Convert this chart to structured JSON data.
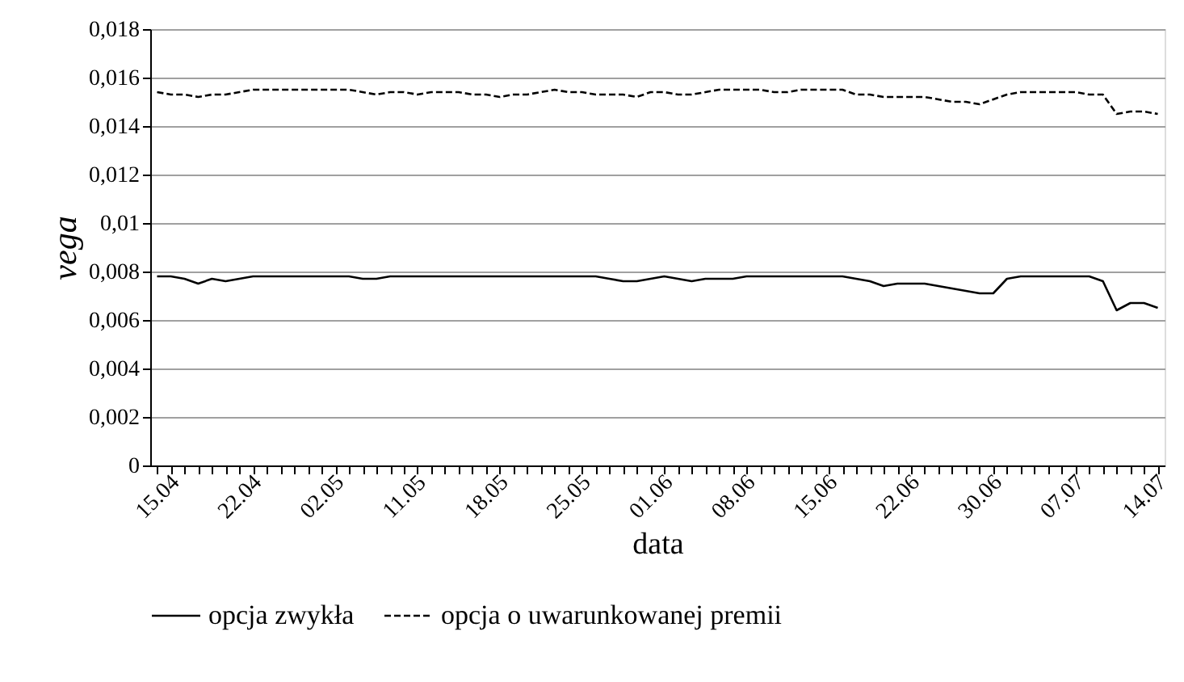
{
  "chart_data": {
    "type": "line",
    "xlabel": "data",
    "ylabel": "vega",
    "categories": [
      "15.04",
      null,
      null,
      null,
      null,
      null,
      "22.04",
      null,
      null,
      null,
      null,
      null,
      "02.05",
      null,
      null,
      null,
      null,
      null,
      "11.05",
      null,
      null,
      null,
      null,
      null,
      "18.05",
      null,
      null,
      null,
      null,
      null,
      "25.05",
      null,
      null,
      null,
      null,
      null,
      "01.06",
      null,
      null,
      null,
      null,
      null,
      "08.06",
      null,
      null,
      null,
      null,
      null,
      "15.06",
      null,
      null,
      null,
      null,
      null,
      "22.06",
      null,
      null,
      null,
      null,
      null,
      "30.06",
      null,
      null,
      null,
      null,
      null,
      "07.07",
      null,
      null,
      null,
      null,
      null,
      "14.07",
      null
    ],
    "series": [
      {
        "name": "opcja zwykła",
        "color": "#000000",
        "line_style": "solid",
        "values": [
          0.0078,
          0.0078,
          0.0077,
          0.0075,
          0.0077,
          0.0076,
          0.0077,
          0.0078,
          0.0078,
          0.0078,
          0.0078,
          0.0078,
          0.0078,
          0.0078,
          0.0078,
          0.0077,
          0.0077,
          0.0078,
          0.0078,
          0.0078,
          0.0078,
          0.0078,
          0.0078,
          0.0078,
          0.0078,
          0.0078,
          0.0078,
          0.0078,
          0.0078,
          0.0078,
          0.0078,
          0.0078,
          0.0078,
          0.0077,
          0.0076,
          0.0076,
          0.0077,
          0.0078,
          0.0077,
          0.0076,
          0.0077,
          0.0077,
          0.0077,
          0.0078,
          0.0078,
          0.0078,
          0.0078,
          0.0078,
          0.0078,
          0.0078,
          0.0078,
          0.0077,
          0.0076,
          0.0074,
          0.0075,
          0.0075,
          0.0075,
          0.0074,
          0.0073,
          0.0072,
          0.0071,
          0.0071,
          0.0077,
          0.0078,
          0.0078,
          0.0078,
          0.0078,
          0.0078,
          0.0078,
          0.0076,
          0.0064,
          0.0067,
          0.0067,
          0.0065
        ]
      },
      {
        "name": "opcja o uwarunkowanej premii",
        "color": "#000000",
        "line_style": "dashed",
        "values": [
          0.0154,
          0.0153,
          0.0153,
          0.0152,
          0.0153,
          0.0153,
          0.0154,
          0.0155,
          0.0155,
          0.0155,
          0.0155,
          0.0155,
          0.0155,
          0.0155,
          0.0155,
          0.0154,
          0.0153,
          0.0154,
          0.0154,
          0.0153,
          0.0154,
          0.0154,
          0.0154,
          0.0153,
          0.0153,
          0.0152,
          0.0153,
          0.0153,
          0.0154,
          0.0155,
          0.0154,
          0.0154,
          0.0153,
          0.0153,
          0.0153,
          0.0152,
          0.0154,
          0.0154,
          0.0153,
          0.0153,
          0.0154,
          0.0155,
          0.0155,
          0.0155,
          0.0155,
          0.0154,
          0.0154,
          0.0155,
          0.0155,
          0.0155,
          0.0155,
          0.0153,
          0.0153,
          0.0152,
          0.0152,
          0.0152,
          0.0152,
          0.0151,
          0.015,
          0.015,
          0.0149,
          0.0151,
          0.0153,
          0.0154,
          0.0154,
          0.0154,
          0.0154,
          0.0154,
          0.0153,
          0.0153,
          0.0145,
          0.0146,
          0.0146,
          0.0145
        ]
      }
    ],
    "ylim": [
      0,
      0.018
    ],
    "yticks": [
      0,
      {
        "value": 0.002,
        "label": "0,002"
      },
      {
        "value": 0.004,
        "label": "0,004"
      },
      {
        "value": 0.006,
        "label": "0,006"
      },
      {
        "value": 0.008,
        "label": "0,008"
      },
      {
        "value": 0.01,
        "label": "0,01"
      },
      {
        "value": 0.012,
        "label": "0,012"
      },
      {
        "value": 0.014,
        "label": "0,014"
      },
      {
        "value": 0.016,
        "label": "0,016"
      },
      {
        "value": 0.018,
        "label": "0,018"
      }
    ],
    "grid": "y",
    "legend": "bottom",
    "marker": "none"
  }
}
